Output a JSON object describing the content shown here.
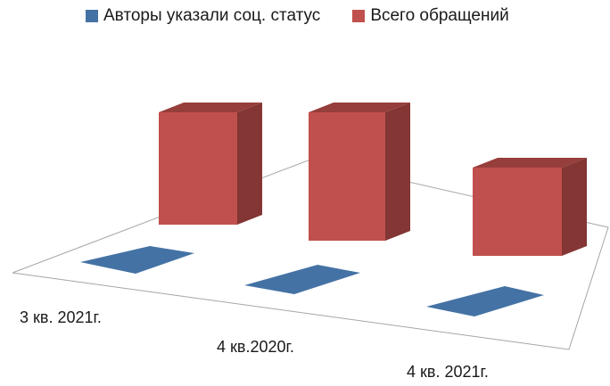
{
  "chart_data": {
    "type": "bar",
    "style": "3d-column",
    "categories": [
      "3 кв. 2021г.",
      "4 кв.2020г.",
      "4 кв. 2021г."
    ],
    "series": [
      {
        "name": "Авторы указали соц. статус",
        "color": "#4472A4",
        "values": [
          0,
          0,
          0
        ]
      },
      {
        "name": "Всего обращений",
        "color": "#C0504D",
        "values": [
          140,
          160,
          110
        ]
      }
    ],
    "ylim": [
      0,
      180
    ],
    "grid": false,
    "legend_position": "top"
  }
}
